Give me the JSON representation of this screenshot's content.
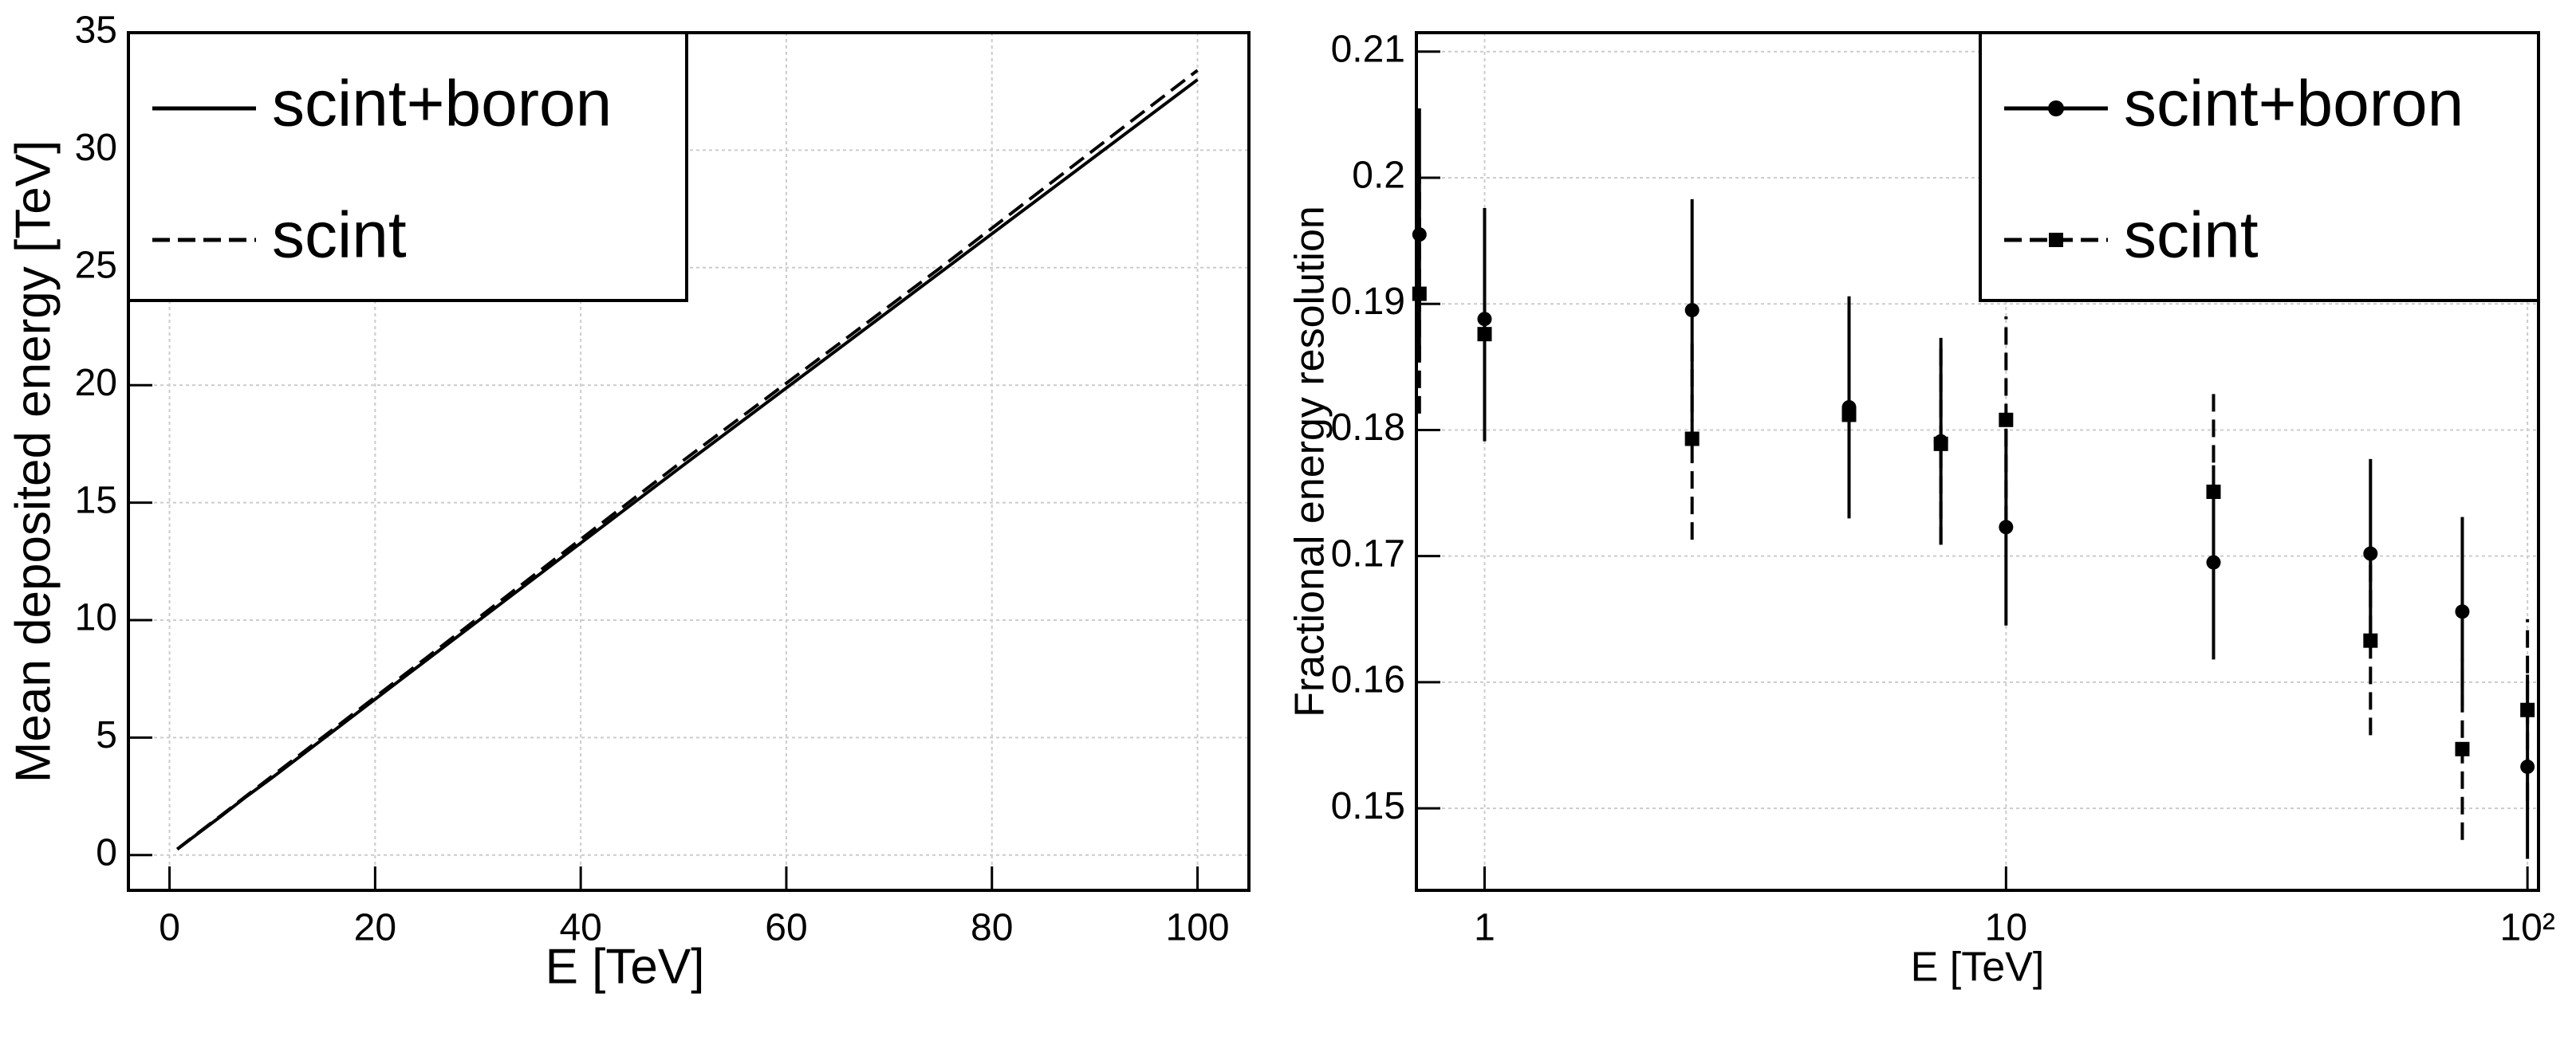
{
  "chart_data": [
    {
      "type": "line",
      "xlabel": "E [TeV]",
      "ylabel": "Mean deposited energy [TeV]",
      "x": [
        0.75,
        1,
        2.5,
        5,
        7.5,
        10,
        25,
        50,
        75,
        100
      ],
      "series": [
        {
          "name": "scint+boron",
          "color": "#000000",
          "line_style": "solid",
          "values": [
            0.25,
            0.33,
            0.83,
            1.65,
            2.5,
            3.3,
            8.3,
            16.6,
            24.8,
            33.0
          ]
        },
        {
          "name": "scint",
          "color": "#000000",
          "line_style": "dashed",
          "values": [
            0.25,
            0.34,
            0.85,
            1.68,
            2.53,
            3.37,
            8.4,
            16.8,
            25.0,
            33.4
          ]
        }
      ],
      "xlim": [
        -4,
        105
      ],
      "xticks": [
        0,
        20,
        40,
        60,
        80,
        100
      ],
      "ylim": [
        -1.5,
        35
      ],
      "yticks": [
        0,
        5,
        10,
        15,
        20,
        25,
        30,
        35
      ],
      "grid": true,
      "legend": "upper-left"
    },
    {
      "type": "scatter",
      "xlabel": "E [TeV]",
      "ylabel": "Fractional energy resolution",
      "log_x": true,
      "x": [
        0.75,
        1,
        2.5,
        5,
        7.5,
        10,
        25,
        50,
        75,
        100
      ],
      "series": [
        {
          "name": "scint+boron",
          "color": "#000000",
          "line_style": "solid",
          "marker": "circle",
          "values": [
            0.1955,
            0.1888,
            0.1895,
            0.1818,
            0.1791,
            0.1723,
            0.1695,
            0.1702,
            0.1656,
            0.1533
          ],
          "errors": [
            0.01,
            0.0088,
            0.0088,
            0.0088,
            0.0082,
            0.0078,
            0.0077,
            0.0075,
            0.0075,
            0.0073
          ]
        },
        {
          "name": "scint",
          "color": "#000000",
          "line_style": "dashed",
          "marker": "square",
          "values": [
            0.1908,
            0.1876,
            0.1793,
            0.1812,
            0.1789,
            0.1808,
            0.1751,
            0.1633,
            0.1547,
            0.1578
          ],
          "errors": [
            0.0095,
            0.0085,
            0.008,
            0.0082,
            0.008,
            0.0082,
            0.0078,
            0.0075,
            0.0072,
            0.0072
          ]
        }
      ],
      "xlim": [
        0.74,
        105
      ],
      "xticks": [
        1,
        10,
        {
          "value": 100,
          "label": "10²"
        }
      ],
      "ylim": [
        0.1435,
        0.2115
      ],
      "yticks": [
        0.15,
        0.16,
        0.17,
        0.18,
        0.19,
        0.2,
        0.21
      ],
      "grid": true,
      "legend": "upper-right"
    }
  ]
}
